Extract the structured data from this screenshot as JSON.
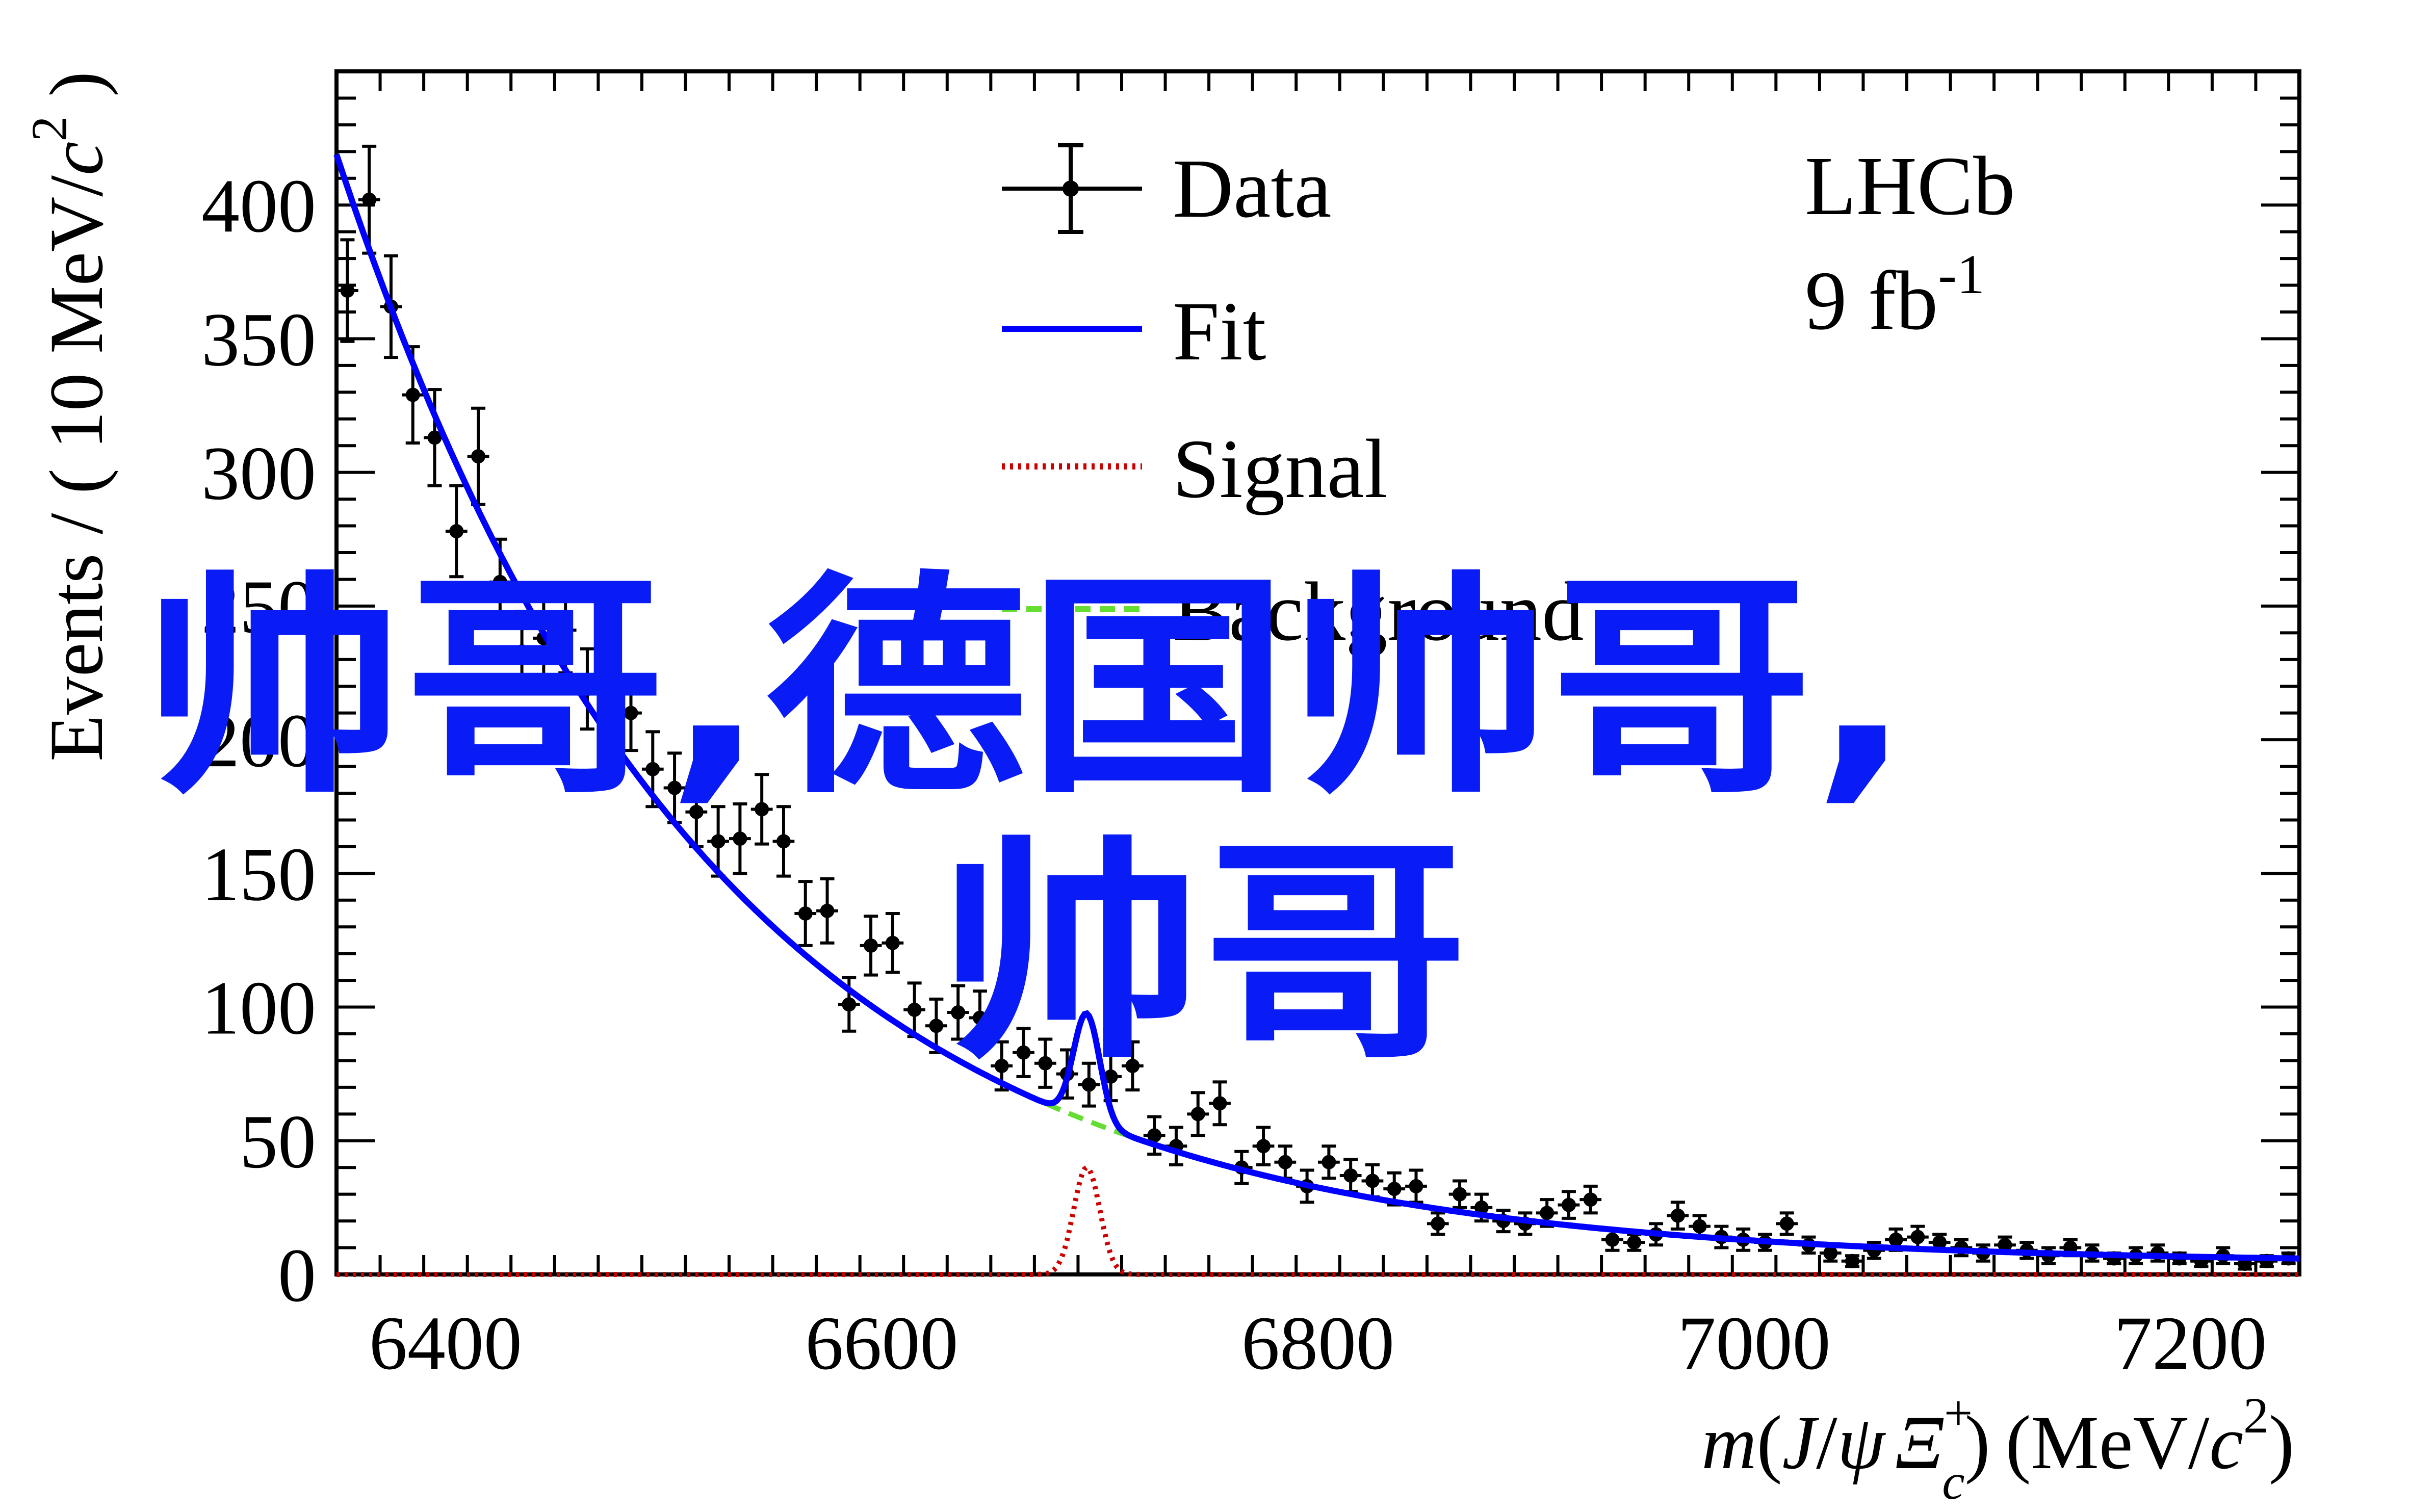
{
  "chart_data": {
    "type": "scatter",
    "experiment": "LHCb",
    "luminosity": "9 fb",
    "luminosity_exponent": "-1",
    "xlabel": {
      "m": "m",
      "paren_open": "(",
      "J": "J",
      "slash": "/",
      "psi": "ψ",
      "Xi": "Ξ",
      "Xi_sup": "+",
      "Xi_sub": "c",
      "paren_close": ")",
      "unit_open": "(MeV/",
      "c": "c",
      "c_sup": "2",
      "unit_close": ")"
    },
    "ylabel": {
      "main": "Events / ( 10 MeV/",
      "c": "c",
      "c_sup": "2",
      "close": " )"
    },
    "xlim": [
      6350,
      7250
    ],
    "ylim": [
      0,
      450
    ],
    "x_ticks": [
      6400,
      6600,
      6800,
      7000,
      7200
    ],
    "y_ticks": [
      0,
      50,
      100,
      150,
      200,
      250,
      300,
      350,
      400
    ],
    "legend": [
      {
        "label": "Data",
        "style": "errorbar",
        "color": "#000000"
      },
      {
        "label": "Fit",
        "style": "solid",
        "color": "#0000ff"
      },
      {
        "label": "Signal",
        "style": "dotted",
        "color": "#cc0000"
      },
      {
        "label": "Background",
        "style": "dashed",
        "color": "#66dd33"
      }
    ],
    "data": {
      "x": [
        6355,
        6365,
        6375,
        6385,
        6395,
        6405,
        6415,
        6425,
        6435,
        6445,
        6455,
        6465,
        6475,
        6485,
        6495,
        6505,
        6515,
        6525,
        6535,
        6545,
        6555,
        6565,
        6575,
        6585,
        6595,
        6605,
        6615,
        6625,
        6635,
        6645,
        6655,
        6665,
        6675,
        6685,
        6695,
        6705,
        6715,
        6725,
        6735,
        6745,
        6755,
        6765,
        6775,
        6785,
        6795,
        6805,
        6815,
        6825,
        6835,
        6845,
        6855,
        6865,
        6875,
        6885,
        6895,
        6905,
        6915,
        6925,
        6935,
        6945,
        6955,
        6965,
        6975,
        6985,
        6995,
        7005,
        7015,
        7025,
        7035,
        7045,
        7055,
        7065,
        7075,
        7085,
        7095,
        7105,
        7115,
        7125,
        7135,
        7145,
        7155,
        7165,
        7175,
        7185,
        7195,
        7205,
        7215,
        7225,
        7235,
        7245
      ],
      "y": [
        368,
        402,
        362,
        329,
        313,
        278,
        306,
        259,
        233,
        238,
        241,
        219,
        205,
        210,
        189,
        182,
        173,
        162,
        163,
        174,
        162,
        135,
        136,
        101,
        123,
        124,
        99,
        93,
        98,
        96,
        78,
        83,
        79,
        75,
        71,
        74,
        78,
        52,
        48,
        60,
        64,
        40,
        48,
        42,
        33,
        42,
        37,
        35,
        32,
        33,
        19,
        30,
        25,
        20,
        19,
        23,
        26,
        28,
        13,
        12,
        15,
        22,
        18,
        14,
        13,
        12,
        19,
        11,
        8,
        5,
        9,
        13,
        14,
        12,
        10,
        8,
        11,
        9,
        7,
        10,
        8,
        6,
        7,
        8,
        6,
        5,
        7,
        4,
        5,
        6
      ],
      "yerr": [
        19,
        20,
        19,
        18,
        18,
        17,
        18,
        16,
        15,
        15,
        16,
        15,
        14,
        14,
        14,
        13,
        13,
        13,
        13,
        13,
        13,
        12,
        12,
        10,
        11,
        11,
        10,
        10,
        10,
        10,
        9,
        9,
        9,
        9,
        8,
        9,
        9,
        7,
        7,
        8,
        8,
        6,
        7,
        6,
        6,
        6,
        6,
        6,
        6,
        6,
        4,
        5,
        5,
        4,
        4,
        5,
        5,
        5,
        4,
        3,
        4,
        5,
        4,
        4,
        4,
        3,
        4,
        3,
        3,
        2,
        3,
        4,
        4,
        3,
        3,
        3,
        3,
        3,
        3,
        3,
        3,
        2,
        3,
        3,
        2,
        2,
        3,
        2,
        2,
        2
      ]
    },
    "fit_model": {
      "background": {
        "amplitude": 410,
        "x0": 6352,
        "slope_per_mev": -0.00595,
        "floor": 4
      },
      "signal": {
        "mean": 6694,
        "sigma": 6,
        "amplitude": 40
      }
    }
  },
  "overlay": {
    "line1": "帅哥,德国帅哥,",
    "line2": "帅哥",
    "color": "#0a1cf5"
  }
}
